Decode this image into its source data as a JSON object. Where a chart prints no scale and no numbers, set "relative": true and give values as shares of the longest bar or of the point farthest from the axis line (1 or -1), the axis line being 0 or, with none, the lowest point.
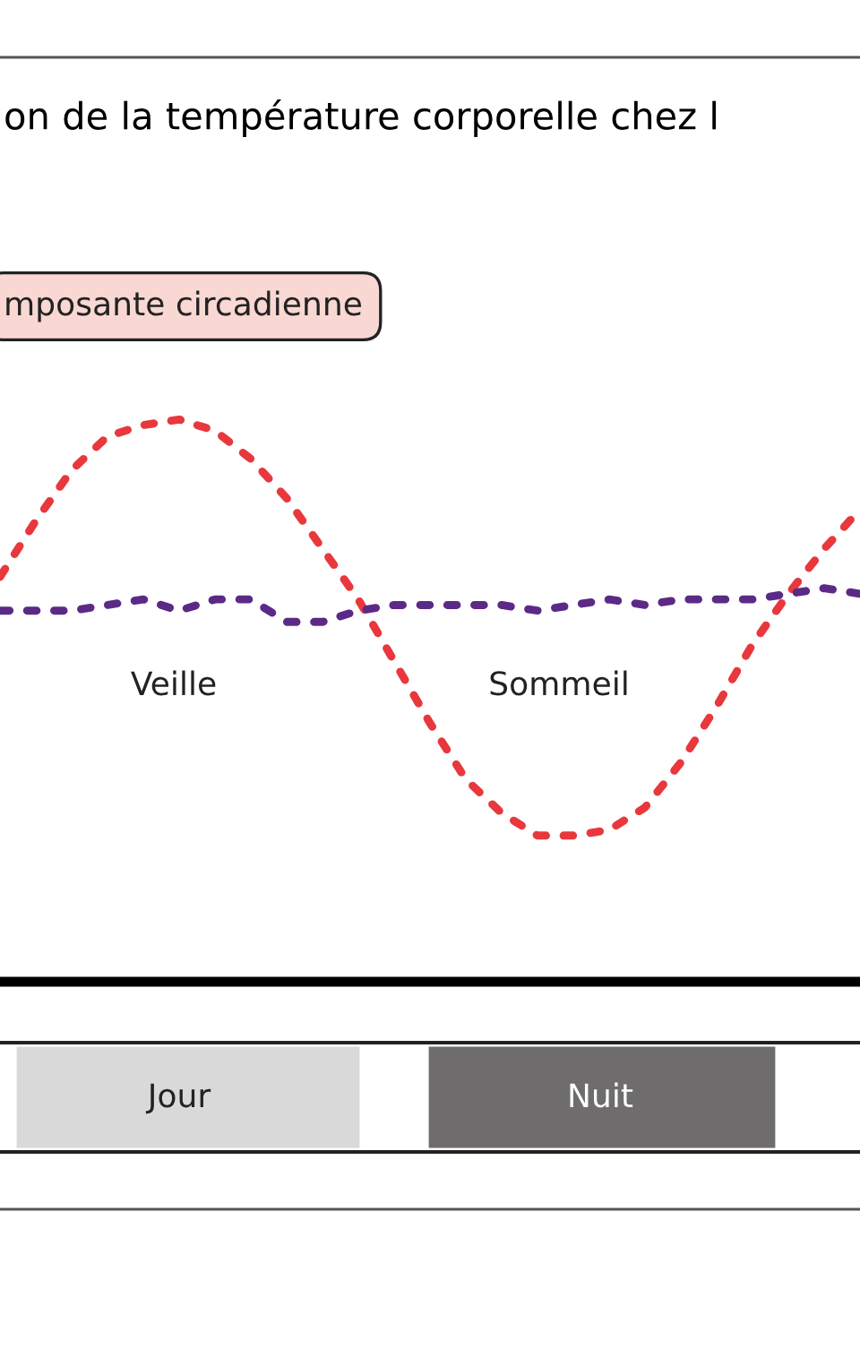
{
  "chart_data": {
    "type": "line",
    "title": "on de la température corporelle chez l",
    "relative": true,
    "grid": false,
    "legend": false,
    "line_style": "dashed",
    "marker": "none",
    "categories": [
      null,
      null,
      null,
      null,
      null,
      null,
      null,
      null,
      null,
      null,
      null,
      null,
      null,
      null,
      null,
      null,
      null,
      null,
      null,
      null,
      null,
      null,
      null,
      null,
      null
    ],
    "series": [
      {
        "color": "#e8383d",
        "values": [
          0.72,
          0.82,
          0.91,
          0.97,
          0.99,
          1.0,
          0.98,
          0.93,
          0.86,
          0.77,
          0.68,
          0.57,
          0.46,
          0.36,
          0.3,
          0.26,
          0.26,
          0.27,
          0.31,
          0.39,
          0.49,
          0.6,
          0.69,
          0.77,
          0.84
        ]
      },
      {
        "color": "#5b2a86",
        "values": [
          0.66,
          0.66,
          0.66,
          0.67,
          0.68,
          0.66,
          0.68,
          0.68,
          0.64,
          0.64,
          0.66,
          0.67,
          0.67,
          0.67,
          0.67,
          0.66,
          0.67,
          0.68,
          0.67,
          0.68,
          0.68,
          0.68,
          0.69,
          0.7,
          0.69
        ]
      }
    ],
    "annotations": [
      "mposante circadienne",
      "Veille",
      "Sommeil",
      "Jour",
      "Nuit"
    ]
  }
}
